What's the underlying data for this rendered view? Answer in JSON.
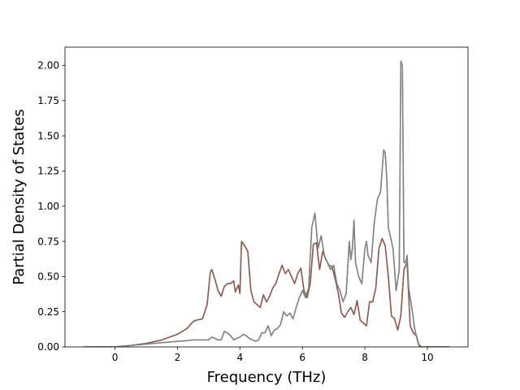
{
  "chart_data": {
    "type": "line",
    "xlabel": "Frequency (THz)",
    "ylabel": "Partial Density of States",
    "xlim": [
      -1.6,
      11.3
    ],
    "ylim": [
      0,
      2.13
    ],
    "xticks": [
      0,
      2,
      4,
      6,
      8,
      10
    ],
    "xtick_labels": [
      "0",
      "2",
      "4",
      "6",
      "8",
      "10"
    ],
    "yticks": [
      0,
      0.25,
      0.5,
      0.75,
      1.0,
      1.25,
      1.5,
      1.75,
      2.0
    ],
    "ytick_labels": [
      "0.00",
      "0.25",
      "0.50",
      "0.75",
      "1.00",
      "1.25",
      "1.50",
      "1.75",
      "2.00"
    ],
    "grid": false,
    "series": [
      {
        "color": "#8c564b",
        "x": [
          -1.0,
          0.0,
          0.5,
          1.0,
          1.5,
          2.0,
          2.3,
          2.5,
          2.6,
          2.8,
          2.95,
          3.05,
          3.1,
          3.2,
          3.3,
          3.4,
          3.5,
          3.6,
          3.7,
          3.8,
          3.85,
          3.95,
          4.0,
          4.05,
          4.15,
          4.25,
          4.35,
          4.45,
          4.55,
          4.65,
          4.75,
          4.85,
          4.95,
          5.05,
          5.15,
          5.25,
          5.35,
          5.45,
          5.55,
          5.65,
          5.75,
          5.85,
          5.95,
          6.05,
          6.15,
          6.25,
          6.35,
          6.45,
          6.55,
          6.65,
          6.75,
          6.85,
          6.95,
          7.05,
          7.15,
          7.25,
          7.35,
          7.45,
          7.55,
          7.65,
          7.75,
          7.85,
          7.95,
          8.05,
          8.15,
          8.25,
          8.35,
          8.45,
          8.55,
          8.65,
          8.75,
          8.85,
          8.95,
          9.05,
          9.15,
          9.25,
          9.35,
          9.45,
          9.55,
          9.65,
          9.72,
          9.8,
          10.7
        ],
        "y": [
          0.0,
          0.0,
          0.01,
          0.025,
          0.05,
          0.09,
          0.13,
          0.18,
          0.19,
          0.2,
          0.3,
          0.53,
          0.55,
          0.48,
          0.4,
          0.36,
          0.43,
          0.45,
          0.45,
          0.47,
          0.39,
          0.44,
          0.38,
          0.75,
          0.72,
          0.68,
          0.4,
          0.32,
          0.3,
          0.28,
          0.37,
          0.32,
          0.36,
          0.42,
          0.45,
          0.52,
          0.58,
          0.52,
          0.55,
          0.5,
          0.45,
          0.52,
          0.56,
          0.4,
          0.35,
          0.45,
          0.73,
          0.74,
          0.55,
          0.68,
          0.62,
          0.58,
          0.57,
          0.48,
          0.38,
          0.24,
          0.21,
          0.25,
          0.28,
          0.23,
          0.33,
          0.19,
          0.17,
          0.15,
          0.32,
          0.32,
          0.42,
          0.7,
          0.77,
          0.72,
          0.5,
          0.22,
          0.2,
          0.12,
          0.22,
          0.55,
          0.6,
          0.15,
          0.1,
          0.08,
          0.02,
          0.0,
          0.0
        ]
      },
      {
        "color": "#7f7f7f",
        "x": [
          -1.0,
          0.0,
          0.5,
          1.0,
          1.5,
          2.0,
          2.3,
          2.5,
          2.8,
          3.0,
          3.1,
          3.2,
          3.3,
          3.4,
          3.5,
          3.6,
          3.7,
          3.8,
          3.9,
          4.0,
          4.1,
          4.2,
          4.3,
          4.4,
          4.5,
          4.6,
          4.7,
          4.8,
          4.9,
          5.0,
          5.1,
          5.2,
          5.3,
          5.4,
          5.5,
          5.6,
          5.7,
          5.8,
          5.9,
          6.0,
          6.1,
          6.2,
          6.3,
          6.4,
          6.5,
          6.6,
          6.7,
          6.8,
          6.9,
          7.0,
          7.1,
          7.2,
          7.3,
          7.4,
          7.5,
          7.55,
          7.6,
          7.65,
          7.7,
          7.8,
          7.9,
          8.0,
          8.05,
          8.1,
          8.2,
          8.3,
          8.4,
          8.5,
          8.6,
          8.65,
          8.7,
          8.75,
          8.8,
          8.9,
          9.0,
          9.1,
          9.15,
          9.2,
          9.25,
          9.3,
          9.35,
          9.4,
          9.45,
          9.5,
          9.6,
          9.7,
          9.75,
          10.7
        ],
        "y": [
          0.0,
          0.0,
          0.01,
          0.02,
          0.03,
          0.04,
          0.045,
          0.05,
          0.05,
          0.05,
          0.07,
          0.06,
          0.05,
          0.05,
          0.11,
          0.1,
          0.08,
          0.05,
          0.06,
          0.07,
          0.09,
          0.08,
          0.06,
          0.05,
          0.04,
          0.05,
          0.1,
          0.1,
          0.15,
          0.08,
          0.12,
          0.13,
          0.16,
          0.25,
          0.22,
          0.24,
          0.2,
          0.28,
          0.35,
          0.4,
          0.35,
          0.42,
          0.85,
          0.95,
          0.7,
          0.79,
          0.65,
          0.6,
          0.55,
          0.58,
          0.45,
          0.4,
          0.32,
          0.38,
          0.75,
          0.62,
          0.7,
          0.9,
          0.6,
          0.5,
          0.45,
          0.7,
          0.75,
          0.65,
          0.6,
          0.88,
          1.05,
          1.1,
          1.4,
          1.38,
          1.2,
          0.85,
          0.8,
          0.7,
          0.4,
          0.55,
          2.03,
          2.0,
          0.6,
          0.6,
          0.65,
          0.42,
          0.35,
          0.28,
          0.12,
          0.03,
          0.0,
          0.0
        ]
      },
      {
        "color": "#8c564b",
        "x": [
          -1.0,
          0.0,
          0.5,
          1.0,
          1.5,
          2.0,
          2.3,
          2.5,
          2.6,
          2.8,
          2.95,
          3.05,
          3.1,
          3.2,
          3.3,
          3.4,
          3.5,
          3.6,
          3.7,
          3.8,
          3.85,
          3.95,
          4.0,
          4.05,
          4.15,
          4.25,
          4.35,
          4.45,
          4.55,
          4.65,
          4.75,
          4.85,
          4.95,
          5.05,
          5.15,
          5.25,
          5.35,
          5.45,
          5.55,
          5.65,
          5.75,
          5.85,
          5.95,
          6.05,
          6.15,
          6.25,
          6.35,
          6.45,
          6.55,
          6.65,
          6.75,
          6.85,
          6.95,
          7.05,
          7.15,
          7.25,
          7.35,
          7.45,
          7.55,
          7.65,
          7.75,
          7.85,
          7.95,
          8.05,
          8.15,
          8.25,
          8.35,
          8.45,
          8.55,
          8.65,
          8.75,
          8.85,
          8.95,
          9.05,
          9.15,
          9.25,
          9.35,
          9.45,
          9.55,
          9.65,
          9.72,
          9.8,
          10.7
        ],
        "y": [
          0.0,
          0.0,
          0.01,
          0.025,
          0.05,
          0.09,
          0.13,
          0.18,
          0.19,
          0.2,
          0.3,
          0.53,
          0.55,
          0.48,
          0.4,
          0.36,
          0.43,
          0.45,
          0.45,
          0.47,
          0.39,
          0.44,
          0.38,
          0.75,
          0.72,
          0.68,
          0.4,
          0.32,
          0.3,
          0.28,
          0.37,
          0.32,
          0.36,
          0.42,
          0.45,
          0.52,
          0.58,
          0.52,
          0.55,
          0.5,
          0.45,
          0.52,
          0.56,
          0.4,
          0.35,
          0.45,
          0.73,
          0.74,
          0.55,
          0.68,
          0.62,
          0.58,
          0.57,
          0.48,
          0.38,
          0.24,
          0.21,
          0.25,
          0.28,
          0.23,
          0.33,
          0.19,
          0.17,
          0.15,
          0.32,
          0.32,
          0.42,
          0.7,
          0.77,
          0.72,
          0.5,
          0.22,
          0.2,
          0.12,
          0.22,
          0.55,
          0.6,
          0.15,
          0.1,
          0.08,
          0.02,
          0.0,
          0.0
        ]
      },
      {
        "color": "#7f7f7f",
        "x": [
          -1.0,
          0.0,
          0.5,
          1.0,
          1.5,
          2.0,
          2.3,
          2.5,
          2.8,
          3.0,
          3.1,
          3.2,
          3.3,
          3.4,
          3.5,
          3.6,
          3.7,
          3.8,
          3.9,
          4.0,
          4.1,
          4.2,
          4.3,
          4.4,
          4.5,
          4.6,
          4.7,
          4.8,
          4.9,
          5.0,
          5.1,
          5.2,
          5.3,
          5.4,
          5.5,
          5.6,
          5.7,
          5.8,
          5.9,
          6.0,
          6.1,
          6.2,
          6.3,
          6.4,
          6.5,
          6.6,
          6.7,
          6.8,
          6.9,
          7.0,
          7.1,
          7.2,
          7.3,
          7.4,
          7.5,
          7.55,
          7.6,
          7.65,
          7.7,
          7.8,
          7.9,
          8.0,
          8.05,
          8.1,
          8.2,
          8.3,
          8.4,
          8.5,
          8.6,
          8.65,
          8.7,
          8.75,
          8.8,
          8.9,
          9.0,
          9.1,
          9.15,
          9.2,
          9.25,
          9.3,
          9.35,
          9.4,
          9.45,
          9.5,
          9.6,
          9.7,
          9.75,
          10.7
        ],
        "y": [
          0.0,
          0.0,
          0.01,
          0.02,
          0.03,
          0.04,
          0.045,
          0.05,
          0.05,
          0.05,
          0.07,
          0.06,
          0.05,
          0.05,
          0.11,
          0.1,
          0.08,
          0.05,
          0.06,
          0.07,
          0.09,
          0.08,
          0.06,
          0.05,
          0.04,
          0.05,
          0.1,
          0.1,
          0.15,
          0.08,
          0.12,
          0.13,
          0.16,
          0.25,
          0.22,
          0.24,
          0.2,
          0.28,
          0.35,
          0.4,
          0.35,
          0.42,
          0.85,
          0.95,
          0.7,
          0.79,
          0.65,
          0.6,
          0.55,
          0.58,
          0.45,
          0.4,
          0.32,
          0.38,
          0.75,
          0.62,
          0.7,
          0.9,
          0.6,
          0.5,
          0.45,
          0.7,
          0.75,
          0.65,
          0.6,
          0.88,
          1.05,
          1.1,
          1.4,
          1.38,
          1.2,
          0.85,
          0.8,
          0.7,
          0.4,
          0.55,
          2.03,
          2.0,
          0.6,
          0.6,
          0.65,
          0.42,
          0.35,
          0.28,
          0.12,
          0.03,
          0.0,
          0.0
        ]
      }
    ]
  }
}
